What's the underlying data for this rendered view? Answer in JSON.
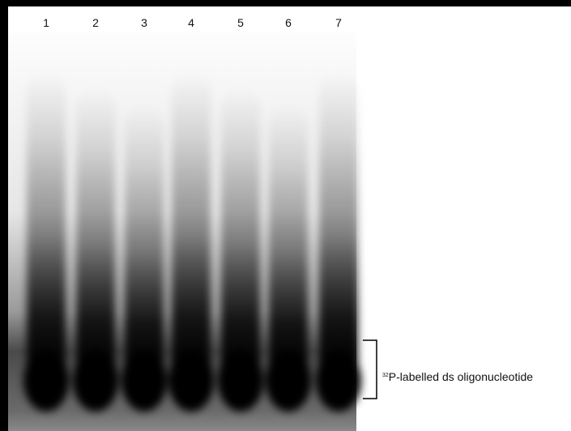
{
  "lanes": [
    "1",
    "2",
    "3",
    "4",
    "5",
    "6",
    "7"
  ],
  "annotation": {
    "superscript": "32",
    "text": "P-labelled ds oligonucleotide"
  }
}
